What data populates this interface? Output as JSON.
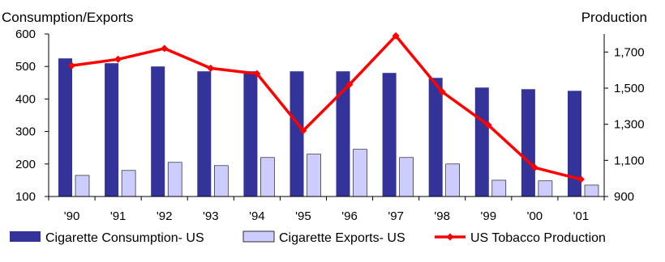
{
  "chart_data": {
    "type": "bar",
    "categories": [
      "'90",
      "'91",
      "'92",
      "'93",
      "'94",
      "'95",
      "'96",
      "'97",
      "'98",
      "'99",
      "'00",
      "'01"
    ],
    "series": [
      {
        "name": "Cigarette Consumption- US",
        "kind": "bar",
        "axis": "left",
        "color": "#333399",
        "values": [
          525,
          510,
          500,
          485,
          485,
          485,
          485,
          480,
          465,
          435,
          430,
          425
        ]
      },
      {
        "name": "Cigarette Exports- US",
        "kind": "bar",
        "axis": "left",
        "color": "#ccccff",
        "values": [
          165,
          180,
          205,
          195,
          220,
          230,
          245,
          220,
          200,
          150,
          148,
          135
        ]
      },
      {
        "name": "US Tobacco Production",
        "kind": "line",
        "axis": "right",
        "color": "#ff0000",
        "values": [
          1625,
          1660,
          1720,
          1610,
          1580,
          1265,
          1520,
          1790,
          1480,
          1295,
          1060,
          995
        ]
      }
    ],
    "ylabel_left": "Consumption/Exports",
    "ylabel_right": "Production",
    "ylim_left": [
      100,
      600
    ],
    "yticks_left": [
      "100",
      "200",
      "300",
      "400",
      "500",
      "600"
    ],
    "ylim_right": [
      900,
      1800
    ],
    "yticks_right": [
      "900",
      "1,100",
      "1,300",
      "1,500",
      "1,700"
    ],
    "grid": false,
    "legend_position": "bottom"
  }
}
